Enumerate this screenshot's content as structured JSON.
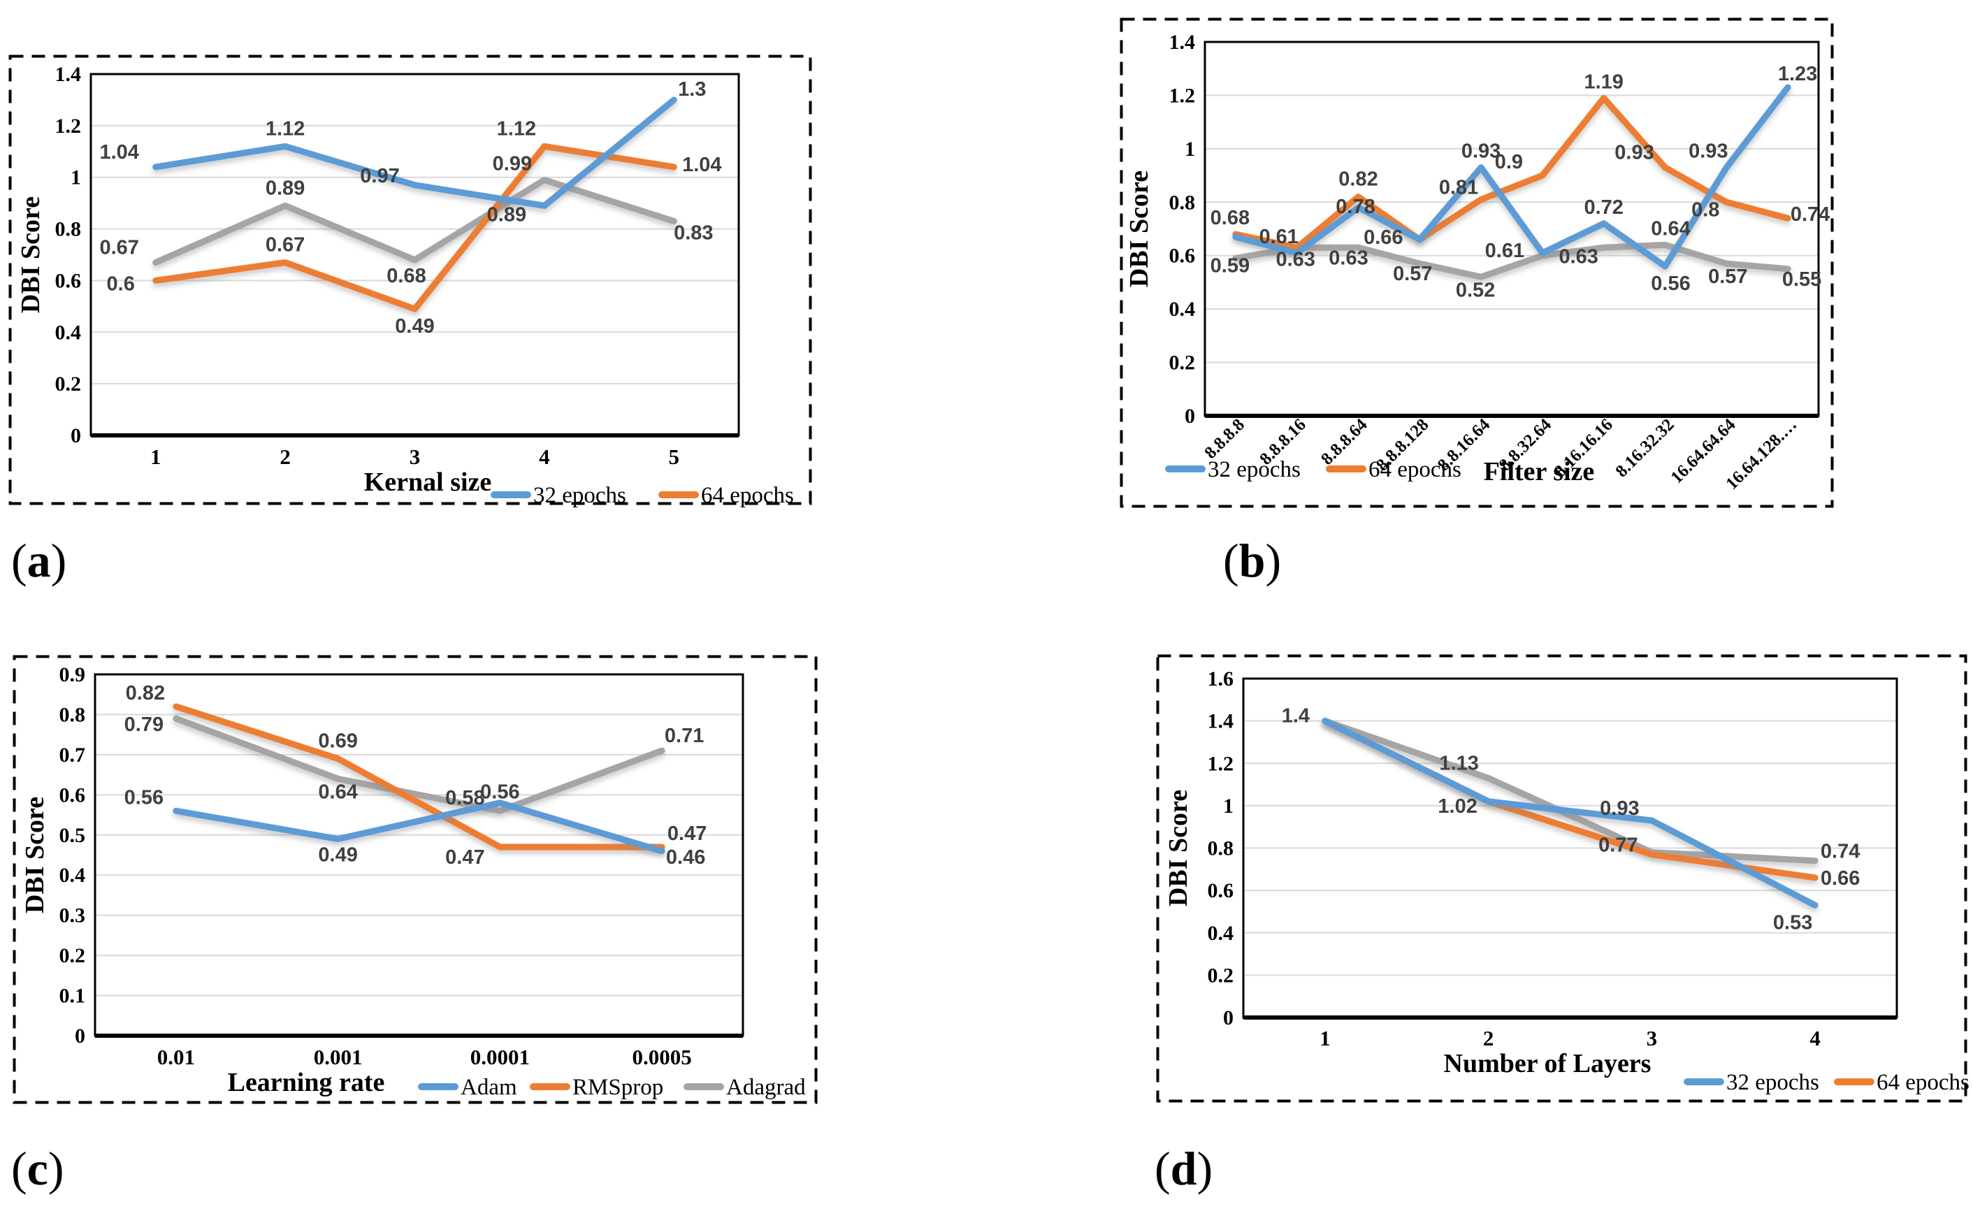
{
  "captions": {
    "a": {
      "open": "(",
      "letter": "a",
      "close": ")"
    },
    "b": {
      "open": "(",
      "letter": "b",
      "close": ")"
    },
    "c": {
      "open": "(",
      "letter": "c",
      "close": ")"
    },
    "d": {
      "open": "(",
      "letter": "d",
      "close": ")"
    }
  },
  "colors": {
    "series_blue": "#5B9BD5",
    "series_orange": "#ED7D31",
    "series_gray": "#A5A5A5",
    "data_label": "#404040",
    "gridline": "#D9D9D9",
    "axis": "#000000"
  },
  "chart_data": [
    {
      "id": "a",
      "type": "line",
      "title": "",
      "xlabel": "Kernal size",
      "ylabel": "DBI Score",
      "ylim": [
        0,
        1.4
      ],
      "yticks": [
        "0",
        "0.2",
        "0.4",
        "0.6",
        "0.8",
        "1",
        "1.2",
        "1.4"
      ],
      "ytick_values": [
        0,
        0.2,
        0.4,
        0.6,
        0.8,
        1,
        1.2,
        1.4
      ],
      "categories": [
        "1",
        "2",
        "3",
        "4",
        "5"
      ],
      "grid": true,
      "x_tick_rotate": false,
      "legend": {
        "position": "bottom-right",
        "entries": [
          {
            "name": "32 epochs",
            "color": "#5B9BD5"
          },
          {
            "name": "64 epochs",
            "color": "#ED7D31"
          }
        ]
      },
      "series": [
        {
          "name": "32 epochs",
          "color": "#5B9BD5",
          "values": [
            1.04,
            1.12,
            0.97,
            0.89,
            1.3
          ],
          "labels": [
            "1.04",
            "1.12",
            "0.97",
            "0.89",
            "1.3"
          ],
          "label_offsets": [
            [
              -52,
              -12
            ],
            [
              0,
              -16
            ],
            [
              -50,
              -4
            ],
            [
              -54,
              22
            ],
            [
              26,
              -6
            ]
          ]
        },
        {
          "name": "64 epochs",
          "color": "#ED7D31",
          "values": [
            0.6,
            0.67,
            0.49,
            1.12,
            1.04
          ],
          "labels": [
            "0.6",
            "0.67",
            "0.49",
            "1.12",
            "1.04"
          ],
          "label_offsets": [
            [
              -50,
              14
            ],
            [
              0,
              -16
            ],
            [
              0,
              34
            ],
            [
              -40,
              -16
            ],
            [
              40,
              6
            ]
          ]
        },
        {
          "name": "",
          "color": "#A5A5A5",
          "values": [
            0.67,
            0.89,
            0.68,
            0.99,
            0.83
          ],
          "labels": [
            "0.67",
            "0.89",
            "0.68",
            "0.99",
            "0.83"
          ],
          "label_offsets": [
            [
              -52,
              -12
            ],
            [
              0,
              -16
            ],
            [
              -12,
              32
            ],
            [
              -46,
              -14
            ],
            [
              28,
              26
            ]
          ]
        }
      ]
    },
    {
      "id": "b",
      "type": "line",
      "title": "",
      "xlabel": "Filter size",
      "ylabel": "DBI Score",
      "ylim": [
        0,
        1.4
      ],
      "yticks": [
        "0",
        "0.2",
        "0.4",
        "0.6",
        "0.8",
        "1",
        "1.2",
        "1.4"
      ],
      "ytick_values": [
        0,
        0.2,
        0.4,
        0.6,
        0.8,
        1,
        1.2,
        1.4
      ],
      "categories": [
        "8.8.8.8",
        "8.8.8.16",
        "8.8.8.64",
        "8.8.8.128",
        "8.8.16.64",
        "8.8.32.64",
        "8.16.16.16",
        "8.16.32.32",
        "16.64.64.64",
        "16.64.128.…"
      ],
      "grid": true,
      "x_tick_rotate": true,
      "legend": {
        "position": "bottom-left",
        "entries": [
          {
            "name": "32 epochs",
            "color": "#5B9BD5"
          },
          {
            "name": "64 epochs",
            "color": "#ED7D31"
          }
        ]
      },
      "series": [
        {
          "name": "32 epochs",
          "color": "#5B9BD5",
          "values": [
            0.67,
            0.61,
            0.78,
            0.66,
            0.93,
            0.61,
            0.72,
            0.56,
            0.93,
            1.23
          ],
          "labels": [
            "",
            "0.61",
            "0.78",
            "",
            "0.93",
            "0.61",
            "0.72",
            "0.56",
            "0.93",
            "1.23"
          ],
          "label_offsets": [
            null,
            [
              -26,
              -14
            ],
            [
              -4,
              8
            ],
            null,
            [
              0,
              -14
            ],
            [
              -54,
              6
            ],
            [
              0,
              -14
            ],
            [
              8,
              34
            ],
            [
              -26,
              -14
            ],
            [
              14,
              -10
            ]
          ]
        },
        {
          "name": "64 epochs",
          "color": "#ED7D31",
          "values": [
            0.68,
            0.63,
            0.82,
            0.66,
            0.81,
            0.9,
            1.19,
            0.93,
            0.8,
            0.74
          ],
          "labels": [
            "0.68",
            "0.63",
            "0.82",
            "0.66",
            "0.81",
            "0.9",
            "1.19",
            "0.93",
            "0.8",
            "0.74"
          ],
          "label_offsets": [
            [
              -8,
              -14
            ],
            [
              -2,
              26
            ],
            [
              0,
              -16
            ],
            [
              -52,
              6
            ],
            [
              -32,
              -8
            ],
            [
              -48,
              -10
            ],
            [
              0,
              -14
            ],
            [
              -44,
              -12
            ],
            [
              -30,
              20
            ],
            [
              32,
              4
            ]
          ]
        },
        {
          "name": "",
          "color": "#A5A5A5",
          "values": [
            0.59,
            0.63,
            0.63,
            0.57,
            0.52,
            0.6,
            0.63,
            0.64,
            0.57,
            0.55
          ],
          "labels": [
            "0.59",
            "",
            "0.63",
            "0.57",
            "0.52",
            "",
            "0.63",
            "0.64",
            "0.57",
            "0.55"
          ],
          "label_offsets": [
            [
              -8,
              20
            ],
            null,
            [
              -14,
              24
            ],
            [
              -10,
              24
            ],
            [
              -8,
              28
            ],
            null,
            [
              -36,
              22
            ],
            [
              8,
              -14
            ],
            [
              2,
              28
            ],
            [
              20,
              24
            ]
          ]
        }
      ]
    },
    {
      "id": "c",
      "type": "line",
      "title": "",
      "xlabel": "Learning rate",
      "ylabel": "DBI Score",
      "ylim": [
        0,
        0.9
      ],
      "yticks": [
        "0",
        "0.1",
        "0.2",
        "0.3",
        "0.4",
        "0.5",
        "0.6",
        "0.7",
        "0.8",
        "0.9"
      ],
      "ytick_values": [
        0,
        0.1,
        0.2,
        0.3,
        0.4,
        0.5,
        0.6,
        0.7,
        0.8,
        0.9
      ],
      "categories": [
        "0.01",
        "0.001",
        "0.0001",
        "0.0005"
      ],
      "grid": true,
      "x_tick_rotate": false,
      "legend": {
        "position": "bottom-right",
        "entries": [
          {
            "name": "Adam",
            "color": "#5B9BD5"
          },
          {
            "name": "RMSprop",
            "color": "#ED7D31"
          },
          {
            "name": "Adagrad",
            "color": "#A5A5A5"
          }
        ]
      },
      "series": [
        {
          "name": "Adam",
          "color": "#5B9BD5",
          "values": [
            0.56,
            0.49,
            0.58,
            0.46
          ],
          "labels": [
            "0.56",
            "0.49",
            "0.58",
            "0.46"
          ],
          "label_offsets": [
            [
              -46,
              -10
            ],
            [
              0,
              32
            ],
            [
              -50,
              2
            ],
            [
              34,
              18
            ]
          ]
        },
        {
          "name": "RMSprop",
          "color": "#ED7D31",
          "values": [
            0.82,
            0.69,
            0.47,
            0.47
          ],
          "labels": [
            "0.82",
            "0.69",
            "0.47",
            "0.47"
          ],
          "label_offsets": [
            [
              -44,
              -10
            ],
            [
              0,
              -16
            ],
            [
              -50,
              24
            ],
            [
              36,
              -10
            ]
          ]
        },
        {
          "name": "Adagrad",
          "color": "#A5A5A5",
          "values": [
            0.79,
            0.64,
            0.56,
            0.71
          ],
          "labels": [
            "0.79",
            "0.64",
            "0.56",
            "0.71"
          ],
          "label_offsets": [
            [
              -46,
              18
            ],
            [
              0,
              28
            ],
            [
              0,
              -18
            ],
            [
              32,
              -12
            ]
          ]
        }
      ]
    },
    {
      "id": "d",
      "type": "line",
      "title": "",
      "xlabel": "Number of Layers",
      "ylabel": "DBI Score",
      "ylim": [
        0,
        1.6
      ],
      "yticks": [
        "0",
        "0.2",
        "0.4",
        "0.6",
        "0.8",
        "1",
        "1.2",
        "1.4",
        "1.6"
      ],
      "ytick_values": [
        0,
        0.2,
        0.4,
        0.6,
        0.8,
        1,
        1.2,
        1.4,
        1.6
      ],
      "categories": [
        "1",
        "2",
        "3",
        "4"
      ],
      "grid": true,
      "x_tick_rotate": false,
      "legend": {
        "position": "bottom-right",
        "entries": [
          {
            "name": "32 epochs",
            "color": "#5B9BD5"
          },
          {
            "name": "64 epochs",
            "color": "#ED7D31"
          }
        ]
      },
      "series": [
        {
          "name": "32 epochs",
          "color": "#5B9BD5",
          "values": [
            1.4,
            1.02,
            0.93,
            0.53
          ],
          "labels": [
            "1.4",
            "",
            "0.93",
            "0.53"
          ],
          "label_offsets": [
            [
              -42,
              2
            ],
            null,
            [
              -46,
              -8
            ],
            [
              -32,
              34
            ]
          ]
        },
        {
          "name": "64 epochs",
          "color": "#ED7D31",
          "values": [
            1.4,
            1.02,
            0.77,
            0.66
          ],
          "labels": [
            "",
            "1.02",
            "0.77",
            "0.66"
          ],
          "label_offsets": [
            null,
            [
              -44,
              16
            ],
            [
              -48,
              -4
            ],
            [
              36,
              10
            ]
          ]
        },
        {
          "name": "",
          "color": "#A5A5A5",
          "values": [
            1.4,
            1.13,
            0.78,
            0.74
          ],
          "labels": [
            "",
            "1.13",
            "",
            "0.74"
          ],
          "label_offsets": [
            null,
            [
              -42,
              -12
            ],
            null,
            [
              36,
              -4
            ]
          ]
        }
      ]
    }
  ]
}
